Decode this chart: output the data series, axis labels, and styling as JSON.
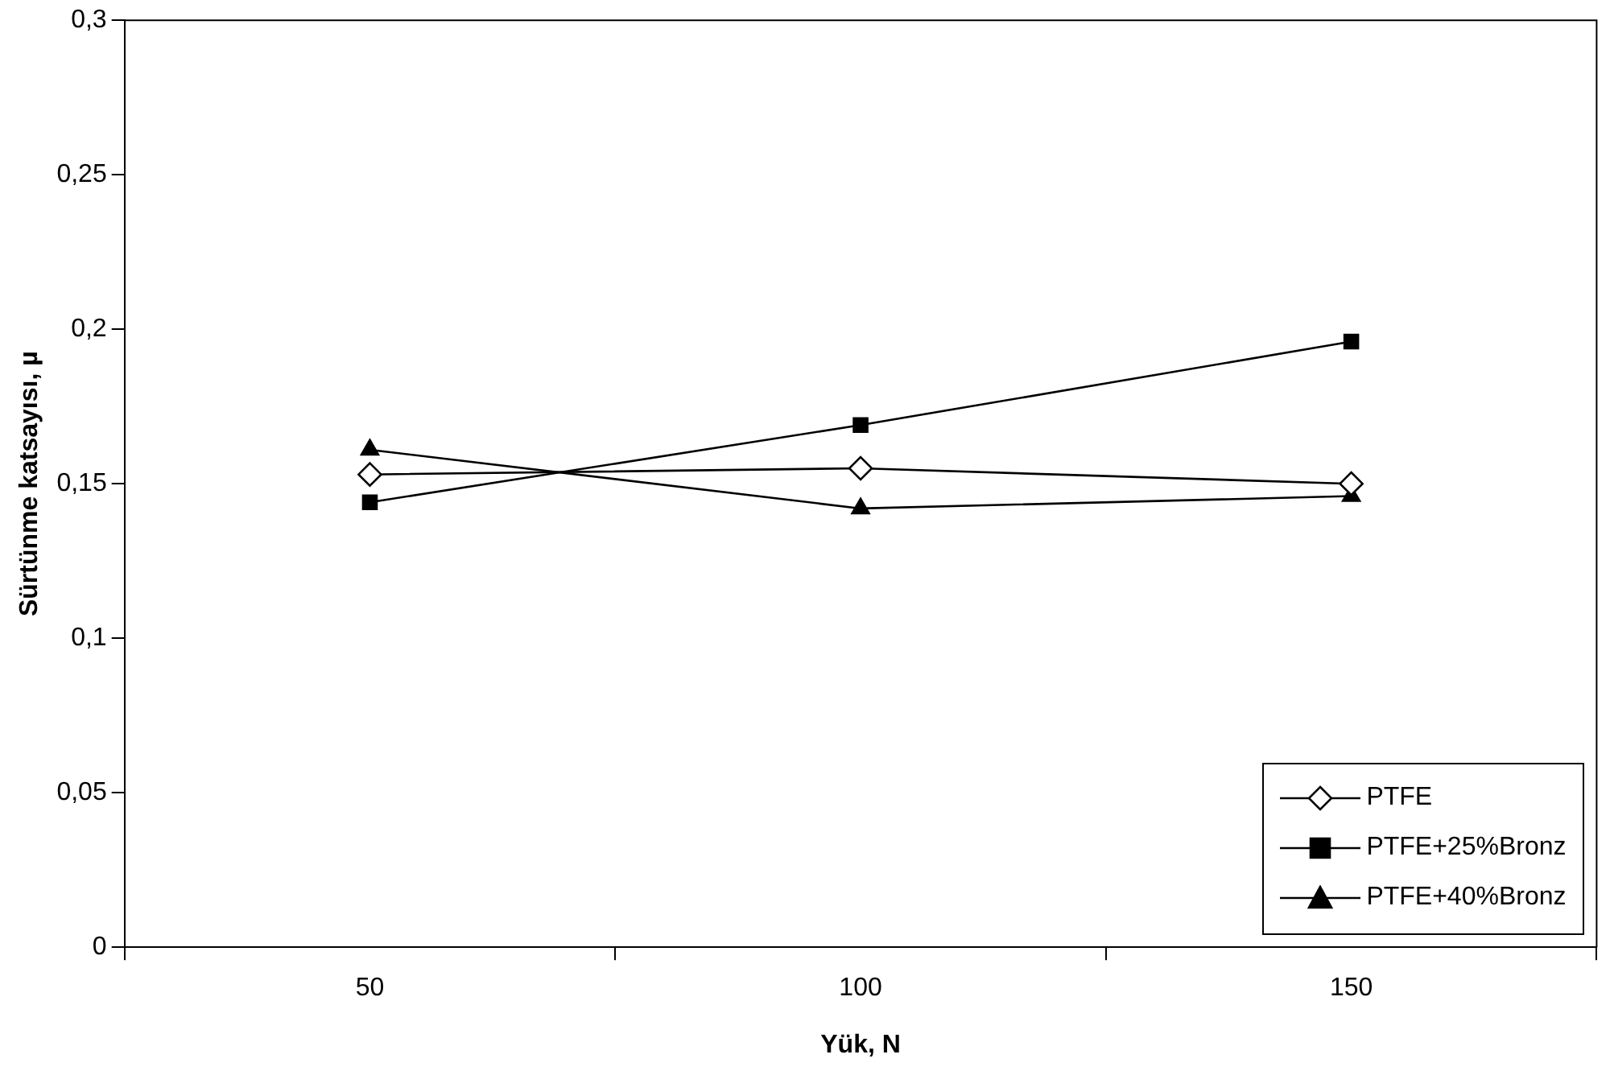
{
  "chart_data": {
    "type": "line",
    "xlabel": "Yük, N",
    "ylabel": "Sürtünme katsayısı, µ",
    "categories": [
      "50",
      "100",
      "150"
    ],
    "series": [
      {
        "name": "PTFE",
        "color": "#000000",
        "marker": "diamond",
        "values": [
          0.153,
          0.155,
          0.15
        ]
      },
      {
        "name": "PTFE+25%Bronz",
        "color": "#000000",
        "marker": "square",
        "values": [
          0.144,
          0.169,
          0.196
        ]
      },
      {
        "name": "PTFE+40%Bronz",
        "color": "#000000",
        "marker": "triangle",
        "values": [
          0.161,
          0.142,
          0.146
        ]
      }
    ],
    "ylim": [
      0,
      0.3
    ],
    "yticks": [
      {
        "value": 0,
        "label": "0"
      },
      {
        "value": 0.05,
        "label": "0,05"
      },
      {
        "value": 0.1,
        "label": "0,1"
      },
      {
        "value": 0.15,
        "label": "0,15"
      },
      {
        "value": 0.2,
        "label": "0,2"
      },
      {
        "value": 0.25,
        "label": "0,25"
      },
      {
        "value": 0.3,
        "label": "0,3"
      }
    ],
    "grid": false,
    "legend": "bottom right"
  }
}
